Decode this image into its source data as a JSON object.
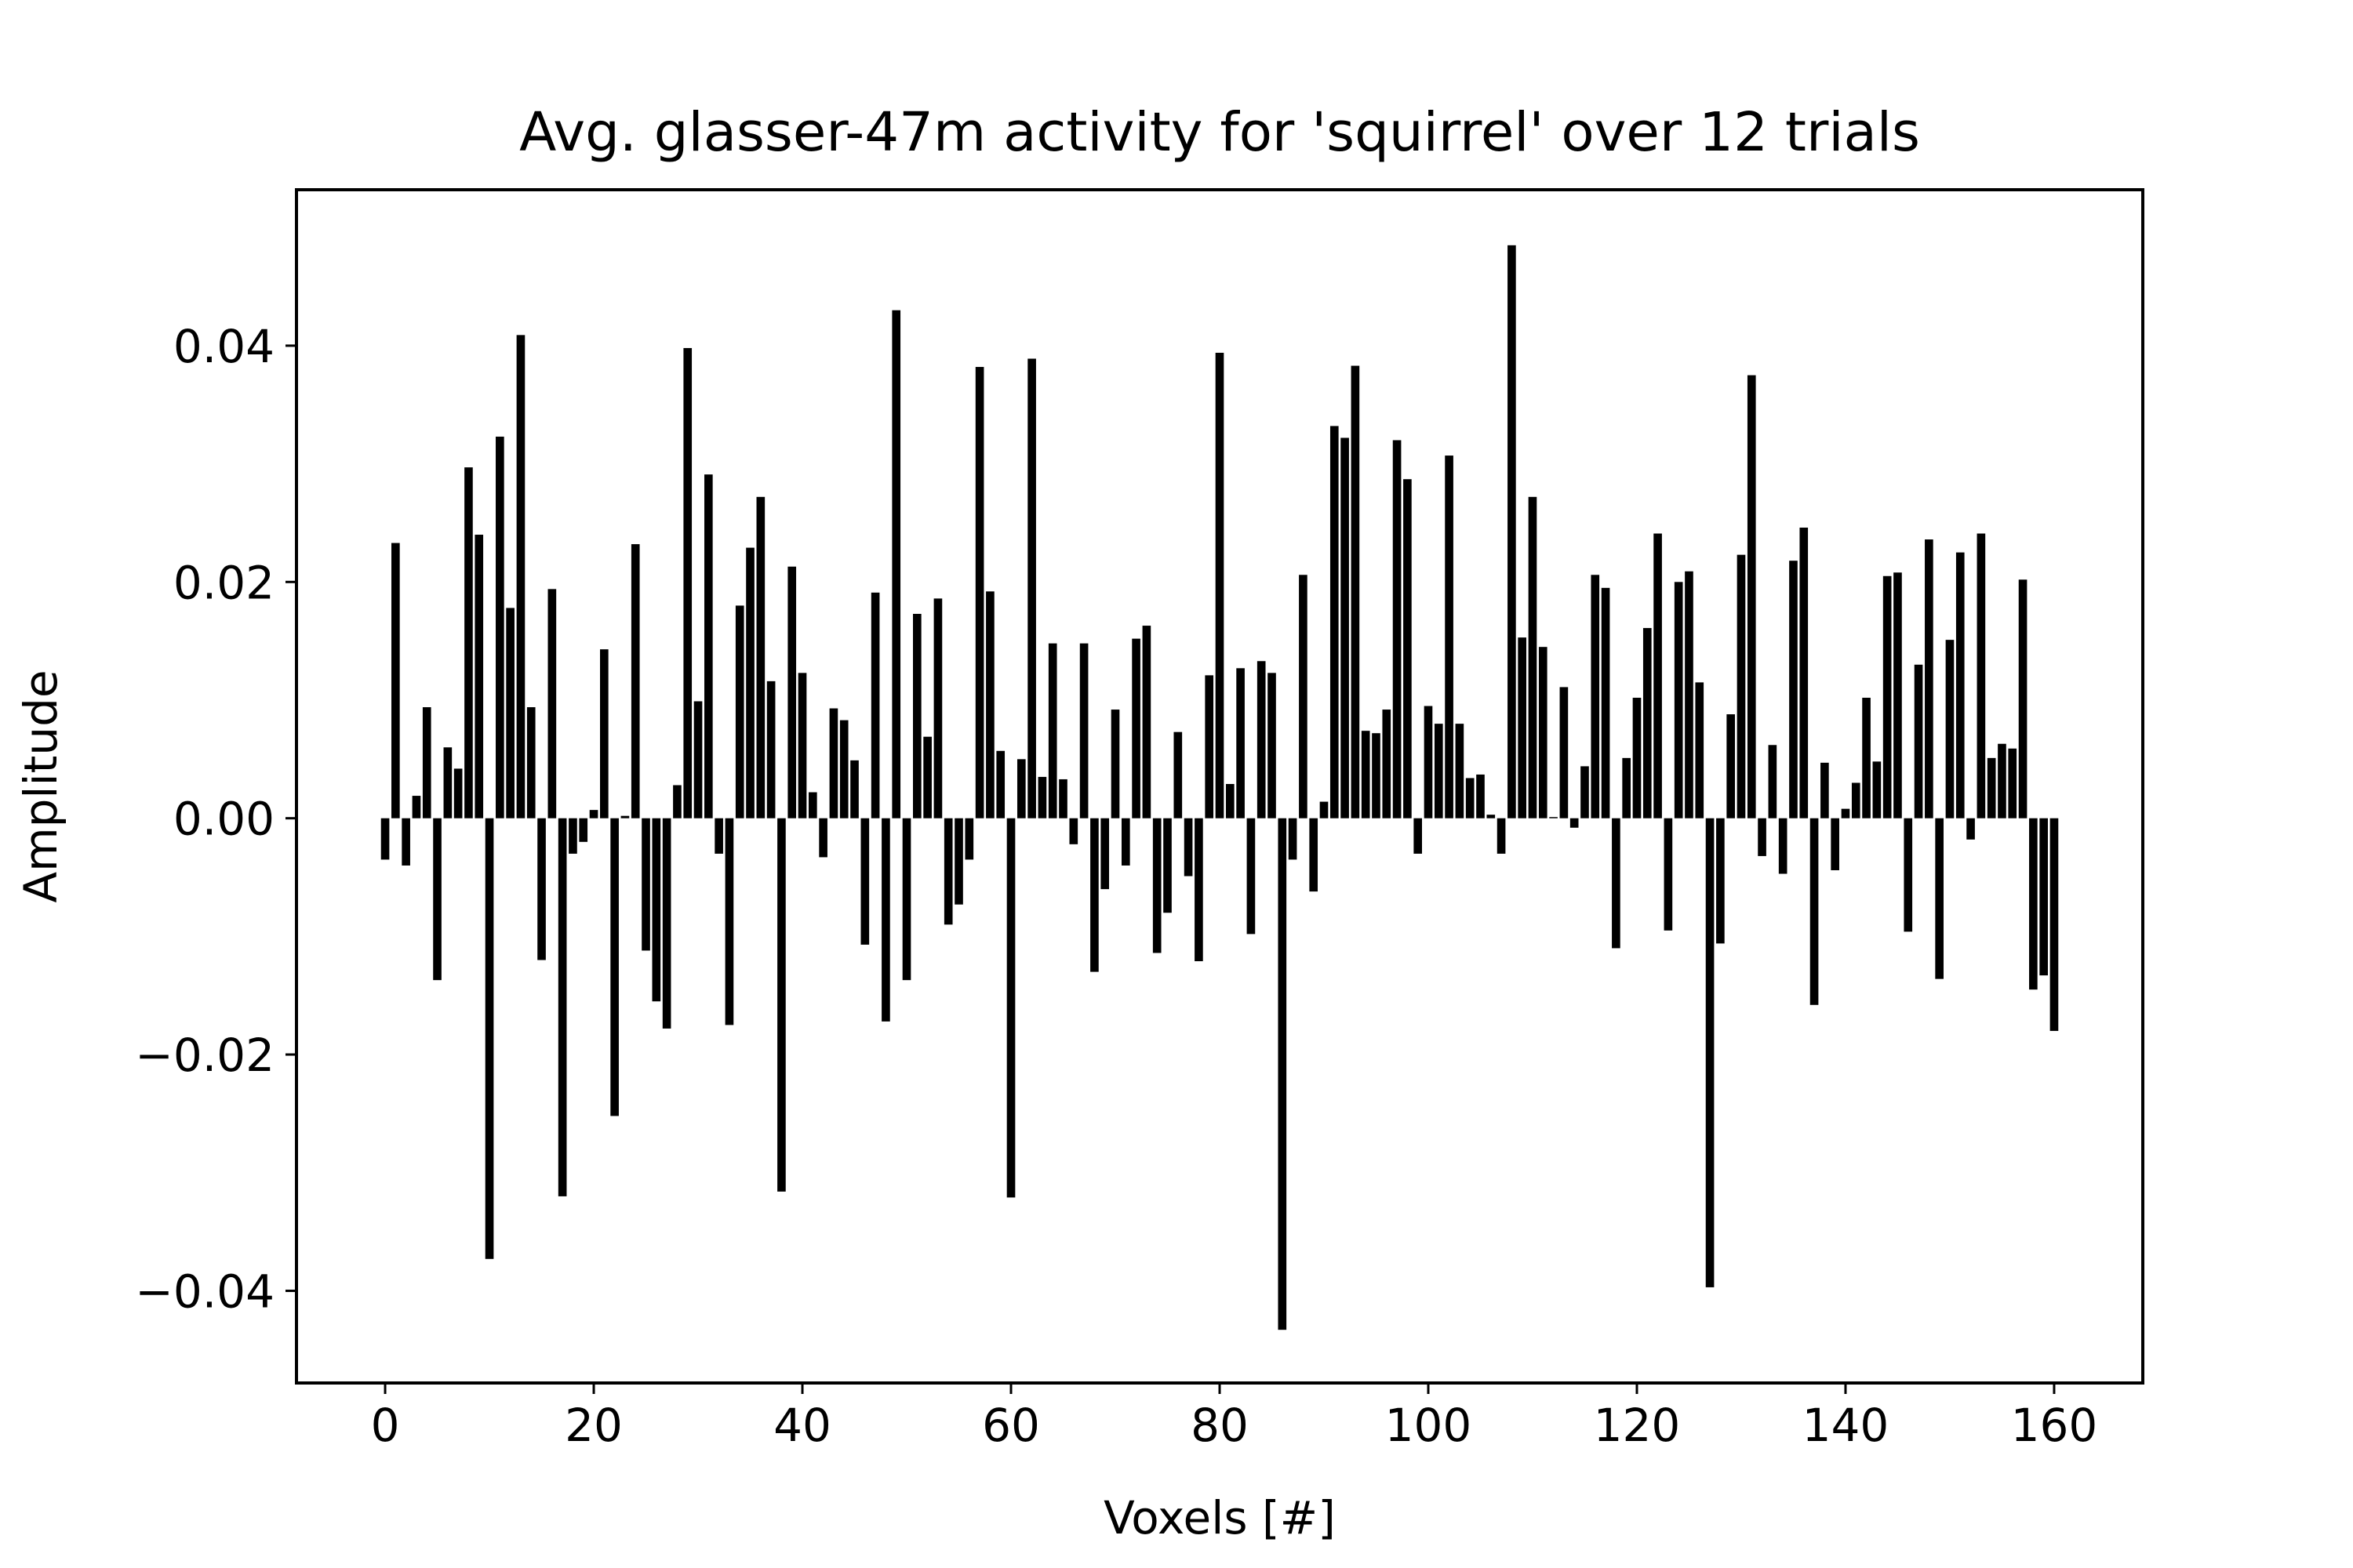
{
  "chart_data": {
    "type": "bar",
    "title": "Avg. glasser-47m activity for 'squirrel' over 12 trials",
    "xlabel": "Voxels [#]",
    "ylabel": "Amplitude",
    "xlim": [
      -8.5,
      168.5
    ],
    "ylim": [
      -0.0478,
      0.0532
    ],
    "xticks": [
      0,
      20,
      40,
      60,
      80,
      100,
      120,
      140,
      160
    ],
    "xtick_labels": [
      "0",
      "20",
      "40",
      "60",
      "80",
      "100",
      "120",
      "140",
      "160"
    ],
    "yticks": [
      -0.04,
      -0.02,
      0.0,
      0.02,
      0.04
    ],
    "ytick_labels": [
      "−0.04",
      "−0.02",
      "0.00",
      "0.02",
      "0.04"
    ],
    "grid": false,
    "bar_color": "#000000",
    "x": [
      0,
      1,
      2,
      3,
      4,
      5,
      6,
      7,
      8,
      9,
      10,
      11,
      12,
      13,
      14,
      15,
      16,
      17,
      18,
      19,
      20,
      21,
      22,
      23,
      24,
      25,
      26,
      27,
      28,
      29,
      30,
      31,
      32,
      33,
      34,
      35,
      36,
      37,
      38,
      39,
      40,
      41,
      42,
      43,
      44,
      45,
      46,
      47,
      48,
      49,
      50,
      51,
      52,
      53,
      54,
      55,
      56,
      57,
      58,
      59,
      60,
      61,
      62,
      63,
      64,
      65,
      66,
      67,
      68,
      69,
      70,
      71,
      72,
      73,
      74,
      75,
      76,
      77,
      78,
      79,
      80,
      81,
      82,
      83,
      84,
      85,
      86,
      87,
      88,
      89,
      90,
      91,
      92,
      93,
      94,
      95,
      96,
      97,
      98,
      99,
      100,
      101,
      102,
      103,
      104,
      105,
      106,
      107,
      108,
      109,
      110,
      111,
      112,
      113,
      114,
      115,
      116,
      117,
      118,
      119,
      120,
      121,
      122,
      123,
      124,
      125,
      126,
      127,
      128,
      129,
      130,
      131,
      132,
      133,
      134,
      135,
      136,
      137,
      138,
      139,
      140,
      141,
      142,
      143,
      144,
      145,
      146,
      147,
      148,
      149,
      150,
      151,
      152,
      153,
      154,
      155,
      156,
      157,
      158,
      159,
      160
    ],
    "values": [
      -0.0035,
      0.0233,
      -0.004,
      0.0019,
      0.0094,
      -0.0137,
      0.006,
      0.0042,
      0.0297,
      0.024,
      -0.0373,
      0.0323,
      0.0178,
      0.0409,
      0.0094,
      -0.012,
      0.0194,
      -0.032,
      -0.003,
      -0.002,
      0.0007,
      0.0143,
      -0.0252,
      0.0002,
      0.0232,
      -0.0112,
      -0.0155,
      -0.0178,
      0.0028,
      0.0398,
      0.0099,
      0.0291,
      -0.003,
      -0.0175,
      0.018,
      0.0229,
      0.0272,
      0.0116,
      -0.0316,
      0.0213,
      0.0123,
      0.0022,
      -0.0033,
      0.0093,
      0.0083,
      0.0049,
      -0.0107,
      0.0191,
      -0.0172,
      0.043,
      -0.0137,
      0.0173,
      0.0069,
      0.0186,
      -0.009,
      -0.0073,
      -0.0035,
      0.0382,
      0.0192,
      0.0057,
      -0.0321,
      0.005,
      0.0389,
      0.0035,
      0.0148,
      0.0033,
      -0.0022,
      0.0148,
      -0.013,
      -0.006,
      0.0092,
      -0.004,
      0.0152,
      0.0163,
      -0.0114,
      -0.008,
      0.0073,
      -0.0049,
      -0.0121,
      0.0121,
      0.0394,
      0.0029,
      0.0127,
      -0.0098,
      0.0133,
      0.0123,
      -0.0433,
      -0.0035,
      0.0206,
      -0.0062,
      0.0014,
      0.0332,
      0.0322,
      0.0383,
      0.0074,
      0.0072,
      0.0092,
      0.032,
      0.0287,
      -0.003,
      0.0095,
      0.008,
      0.0307,
      0.008,
      0.0034,
      0.0037,
      0.0003,
      -0.003,
      0.0485,
      0.0153,
      0.0272,
      0.0145,
      0.0001,
      0.0111,
      -0.0008,
      0.0044,
      0.0206,
      0.0195,
      -0.011,
      0.0051,
      0.0102,
      0.0161,
      0.0241,
      -0.0095,
      0.02,
      0.0209,
      0.0115,
      -0.0397,
      -0.0106,
      0.0088,
      0.0223,
      0.0375,
      -0.0032,
      0.0062,
      -0.0047,
      0.0218,
      0.0246,
      -0.0158,
      0.0047,
      -0.0044,
      0.0008,
      0.003,
      0.0102,
      0.0048,
      0.0205,
      0.0208,
      -0.0096,
      0.013,
      0.0236,
      -0.0136,
      0.0151,
      0.0225,
      -0.0018,
      0.0241,
      0.0051,
      0.0063,
      0.0059,
      0.0202,
      -0.0145,
      -0.0133,
      -0.018
    ]
  }
}
